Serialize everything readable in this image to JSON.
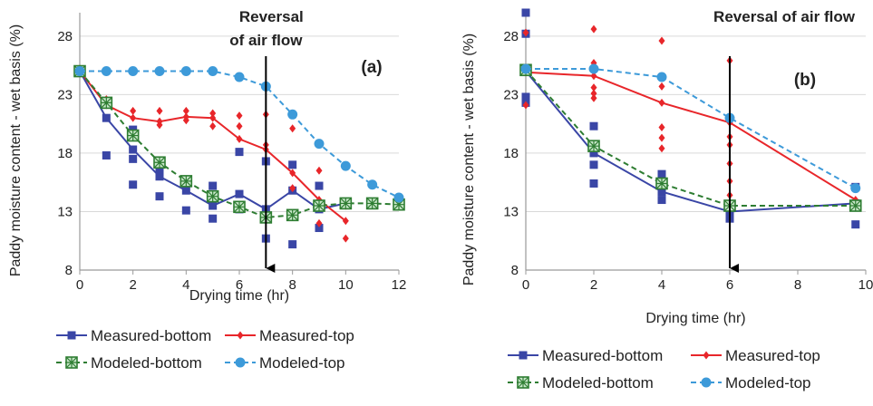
{
  "colors": {
    "measured_bottom": "#3a46a6",
    "measured_top": "#e8262a",
    "modeled_bottom": "#2e7d32",
    "modeled_top": "#3d9ad9",
    "grid": "#d9d9d9",
    "axis": "#9a9a9a",
    "arrow": "#000000"
  },
  "chart_data": [
    {
      "type": "line",
      "panel_label": "(a)",
      "ylabel": "Paddy moisture content - wet basis (%)",
      "xlabel": "Drying time (hr)",
      "xlim": [
        0,
        12
      ],
      "ylim": [
        8,
        30
      ],
      "xticks": [
        0,
        2,
        4,
        6,
        8,
        10,
        12
      ],
      "yticks": [
        8,
        13,
        18,
        23,
        28
      ],
      "grid": "horizontal",
      "annotation": {
        "lines": [
          "Reversal",
          "of air flow"
        ],
        "arrow_x": 7
      },
      "series": [
        {
          "name": "Measured-bottom",
          "color_key": "measured_bottom",
          "dashed": false,
          "marker": "square",
          "x": [
            0,
            1,
            2,
            3,
            4,
            5,
            6,
            7,
            8,
            9,
            10
          ],
          "y": [
            25,
            21,
            18.3,
            16,
            14.8,
            13.5,
            14.5,
            13.2,
            14.8,
            13.2,
            13.7
          ],
          "scatter": [
            [
              1,
              17.8
            ],
            [
              2,
              15.3
            ],
            [
              2,
              17.5
            ],
            [
              2,
              20
            ],
            [
              3,
              14.3
            ],
            [
              3,
              16.5
            ],
            [
              4,
              13.1
            ],
            [
              4,
              15.5
            ],
            [
              5,
              12.4
            ],
            [
              5,
              15.2
            ],
            [
              6,
              13.2
            ],
            [
              6,
              18.1
            ],
            [
              7,
              10.7
            ],
            [
              7,
              17.3
            ],
            [
              8,
              10.2
            ],
            [
              8,
              17
            ],
            [
              9,
              11.6
            ],
            [
              9,
              15.2
            ]
          ]
        },
        {
          "name": "Measured-top",
          "color_key": "measured_top",
          "dashed": false,
          "marker": "diamond",
          "x": [
            0,
            1,
            2,
            3,
            4,
            5,
            6,
            7,
            8,
            9,
            10
          ],
          "y": [
            25,
            22.1,
            21,
            20.7,
            21.1,
            21,
            19.2,
            18.3,
            16.3,
            14,
            12.2
          ],
          "scatter": [
            [
              1,
              22.6
            ],
            [
              2,
              21.6
            ],
            [
              3,
              20.4
            ],
            [
              3,
              21.6
            ],
            [
              4,
              20.8
            ],
            [
              4,
              21.6
            ],
            [
              5,
              20.3
            ],
            [
              5,
              21.4
            ],
            [
              6,
              20.3
            ],
            [
              6,
              21.2
            ],
            [
              7,
              18.7
            ],
            [
              7,
              21.3
            ],
            [
              8,
              20.1
            ],
            [
              8,
              15
            ],
            [
              9,
              12
            ],
            [
              9,
              16.5
            ],
            [
              10,
              10.7
            ],
            [
              10,
              13.5
            ]
          ]
        },
        {
          "name": "Modeled-bottom",
          "color_key": "modeled_bottom",
          "dashed": true,
          "marker": "hatched-square",
          "x": [
            0,
            1,
            2,
            3,
            4,
            5,
            6,
            7,
            8,
            9,
            10,
            11,
            12
          ],
          "y": [
            25,
            22.3,
            19.5,
            17.2,
            15.6,
            14.3,
            13.4,
            12.5,
            12.7,
            13.5,
            13.7,
            13.7,
            13.6
          ]
        },
        {
          "name": "Modeled-top",
          "color_key": "modeled_top",
          "dashed": true,
          "marker": "circle",
          "x": [
            0,
            1,
            2,
            3,
            4,
            5,
            6,
            7,
            8,
            9,
            10,
            11,
            12
          ],
          "y": [
            25,
            25,
            25,
            25,
            25,
            25,
            24.5,
            23.7,
            21.3,
            18.8,
            16.9,
            15.3,
            14.2
          ]
        }
      ]
    },
    {
      "type": "line",
      "panel_label": "(b)",
      "ylabel": "Paddy moisture content - wet basis (%)",
      "xlabel": "Drying time (hr)",
      "xlim": [
        0,
        10
      ],
      "ylim": [
        8,
        30
      ],
      "xticks": [
        0,
        2,
        4,
        6,
        8,
        10
      ],
      "yticks": [
        8,
        13,
        18,
        23,
        28
      ],
      "grid": "horizontal",
      "annotation": {
        "lines": [
          "Reversal of air flow"
        ],
        "arrow_x": 6
      },
      "series": [
        {
          "name": "Measured-bottom",
          "color_key": "measured_bottom",
          "dashed": false,
          "marker": "square",
          "x": [
            0,
            2,
            4,
            6,
            9.7
          ],
          "y": [
            25,
            18,
            14.7,
            13,
            13.7
          ],
          "scatter": [
            [
              0,
              22.3
            ],
            [
              0,
              22.8
            ],
            [
              0,
              28.2
            ],
            [
              0,
              30
            ],
            [
              2,
              15.4
            ],
            [
              2,
              17
            ],
            [
              2,
              20.3
            ],
            [
              4,
              14
            ],
            [
              4,
              16.2
            ],
            [
              6,
              12.4
            ],
            [
              6,
              13.5
            ],
            [
              9.7,
              11.9
            ],
            [
              9.7,
              15.1
            ]
          ]
        },
        {
          "name": "Measured-top",
          "color_key": "measured_top",
          "dashed": false,
          "marker": "diamond",
          "x": [
            0,
            2,
            4,
            6,
            9.7
          ],
          "y": [
            24.9,
            24.6,
            22.3,
            20.6,
            14
          ],
          "scatter": [
            [
              0,
              22.1
            ],
            [
              0,
              25.3
            ],
            [
              0,
              28.3
            ],
            [
              2,
              22.7
            ],
            [
              2,
              23.1
            ],
            [
              2,
              23.6
            ],
            [
              2,
              25.7
            ],
            [
              2,
              28.6
            ],
            [
              4,
              18.4
            ],
            [
              4,
              19.3
            ],
            [
              4,
              20.2
            ],
            [
              4,
              23.7
            ],
            [
              4,
              27.6
            ],
            [
              6,
              14.4
            ],
            [
              6,
              15.6
            ],
            [
              6,
              17.1
            ],
            [
              6,
              18.7
            ],
            [
              6,
              19.4
            ],
            [
              6,
              25.9
            ],
            [
              9.7,
              13.5
            ]
          ]
        },
        {
          "name": "Modeled-bottom",
          "color_key": "modeled_bottom",
          "dashed": true,
          "marker": "hatched-square",
          "x": [
            0,
            2,
            4,
            6,
            9.7
          ],
          "y": [
            25.1,
            18.6,
            15.4,
            13.5,
            13.5
          ]
        },
        {
          "name": "Modeled-top",
          "color_key": "modeled_top",
          "dashed": true,
          "marker": "circle",
          "x": [
            0,
            2,
            4,
            6,
            9.7
          ],
          "y": [
            25.2,
            25.2,
            24.5,
            21,
            15
          ]
        }
      ]
    }
  ]
}
